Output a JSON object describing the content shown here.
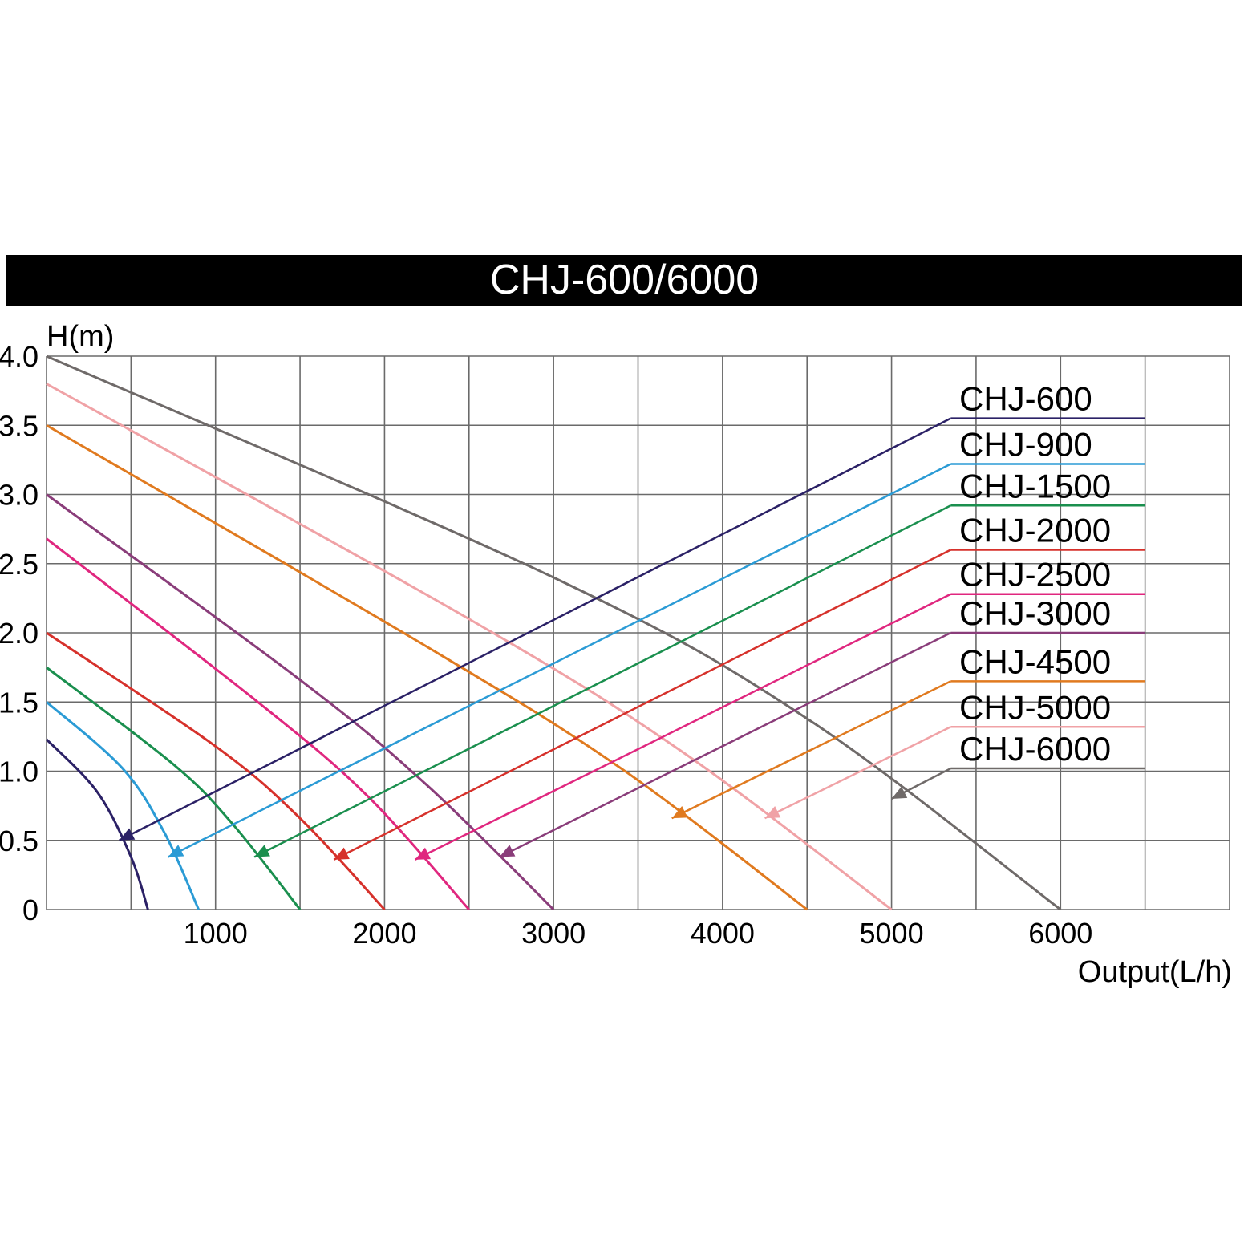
{
  "chart_data": {
    "type": "line",
    "title": "CHJ-600/6000",
    "xlabel": "Output(L/h)",
    "ylabel": "H(m)",
    "xlim": [
      0,
      7000
    ],
    "ylim": [
      0,
      4.0
    ],
    "x_ticks": [
      0,
      500,
      1000,
      1500,
      2000,
      2500,
      3000,
      3500,
      4000,
      4500,
      5000,
      5500,
      6000,
      6500,
      7000
    ],
    "x_tick_labels": [
      {
        "value": 1000,
        "label": "1000"
      },
      {
        "value": 2000,
        "label": "2000"
      },
      {
        "value": 3000,
        "label": "3000"
      },
      {
        "value": 4000,
        "label": "4000"
      },
      {
        "value": 5000,
        "label": "5000"
      },
      {
        "value": 6000,
        "label": "6000"
      }
    ],
    "y_ticks": [
      {
        "value": 0,
        "label": "0"
      },
      {
        "value": 0.5,
        "label": "0.5"
      },
      {
        "value": 1.0,
        "label": "1.0"
      },
      {
        "value": 1.5,
        "label": "1.5"
      },
      {
        "value": 2.0,
        "label": "2.0"
      },
      {
        "value": 2.5,
        "label": "2.5"
      },
      {
        "value": 3.0,
        "label": "3.0"
      },
      {
        "value": 3.5,
        "label": "3.5"
      },
      {
        "value": 4.0,
        "label": "4.0"
      }
    ],
    "grid": true,
    "legend_position": "right",
    "series": [
      {
        "name": "CHJ-600",
        "color": "#2b2166",
        "max_head": 1.23,
        "max_flow": 600,
        "x": [
          0,
          300,
          500,
          600
        ],
        "y": [
          1.23,
          0.85,
          0.38,
          0
        ],
        "arrow": [
          430,
          0.5
        ]
      },
      {
        "name": "CHJ-900",
        "color": "#2b9bd5",
        "max_head": 1.5,
        "max_flow": 900,
        "x": [
          0,
          450,
          700,
          900
        ],
        "y": [
          1.5,
          1.02,
          0.55,
          0
        ],
        "arrow": [
          720,
          0.38
        ]
      },
      {
        "name": "CHJ-1500",
        "color": "#1a8f4e",
        "max_head": 1.75,
        "max_flow": 1500,
        "x": [
          0,
          750,
          1100,
          1500
        ],
        "y": [
          1.75,
          1.05,
          0.62,
          0
        ],
        "arrow": [
          1230,
          0.38
        ]
      },
      {
        "name": "CHJ-2000",
        "color": "#d6312b",
        "max_head": 2.0,
        "max_flow": 2000,
        "x": [
          0,
          1000,
          1500,
          2000
        ],
        "y": [
          2.0,
          1.18,
          0.66,
          0
        ],
        "arrow": [
          1700,
          0.36
        ]
      },
      {
        "name": "CHJ-2500",
        "color": "#e0277f",
        "max_head": 2.68,
        "max_flow": 2500,
        "x": [
          0,
          1250,
          1900,
          2500
        ],
        "y": [
          2.68,
          1.5,
          0.82,
          0
        ],
        "arrow": [
          2180,
          0.36
        ]
      },
      {
        "name": "CHJ-3000",
        "color": "#8a3d7a",
        "max_head": 3.0,
        "max_flow": 3000,
        "x": [
          0,
          1500,
          2250,
          3000
        ],
        "y": [
          3.0,
          1.66,
          0.9,
          0
        ],
        "arrow": [
          2680,
          0.38
        ]
      },
      {
        "name": "CHJ-4500",
        "color": "#e07a1f",
        "max_head": 3.5,
        "max_flow": 4500,
        "x": [
          0,
          2250,
          3400,
          4500
        ],
        "y": [
          3.5,
          1.9,
          1.02,
          0
        ],
        "arrow": [
          3700,
          0.66
        ]
      },
      {
        "name": "CHJ-5000",
        "color": "#f0a2a6",
        "max_head": 3.8,
        "max_flow": 5000,
        "x": [
          0,
          2500,
          3750,
          5000
        ],
        "y": [
          3.8,
          2.1,
          1.15,
          0
        ],
        "arrow": [
          4250,
          0.66
        ]
      },
      {
        "name": "CHJ-6000",
        "color": "#6f6a69",
        "max_head": 4.0,
        "max_flow": 6000,
        "x": [
          0,
          3000,
          4500,
          6000
        ],
        "y": [
          4.0,
          2.4,
          1.38,
          0
        ],
        "arrow": [
          5000,
          0.8
        ]
      }
    ],
    "legend_line_heights": [
      3.55,
      3.22,
      2.92,
      2.6,
      2.28,
      2.0,
      1.65,
      1.32,
      1.02
    ],
    "legend_line_x": [
      5350,
      6500
    ]
  }
}
